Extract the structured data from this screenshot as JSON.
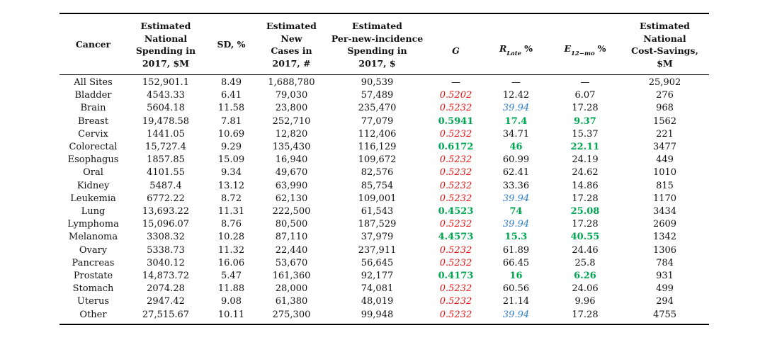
{
  "table": {
    "column_keys": [
      "cancer",
      "spending",
      "sd",
      "new-cases",
      "per-incidence-spending",
      "g",
      "r-late",
      "e-12mo",
      "cost-savings"
    ],
    "columns": [
      {
        "label": "Cancer"
      },
      {
        "label": "Estimated\nNational\nSpending in\n2017, $M"
      },
      {
        "label": "SD, %"
      },
      {
        "label": "Estimated\nNew\nCases in\n2017, #"
      },
      {
        "label": "Estimated\nPer-new-incidence\nSpending in\n2017, $"
      },
      {
        "label": "G"
      },
      {
        "base": "R",
        "sub": "Late",
        "suffix": "%"
      },
      {
        "base": "E",
        "sub": "12−mo",
        "suffix": "%"
      },
      {
        "label": "Estimated\nNational\nCost-Savings,\n$M"
      }
    ],
    "rows": [
      {
        "cells": [
          "All Sites",
          "152,901.1",
          "8.49",
          "1,688,780",
          "90,539",
          "—",
          "—",
          "—",
          "25,902"
        ],
        "styles": [
          "",
          "",
          "",
          "",
          "",
          "",
          "",
          "",
          ""
        ]
      },
      {
        "cells": [
          "Bladder",
          "4543.33",
          "6.41",
          "79,030",
          "57,489",
          "0.5202",
          "12.42",
          "6.07",
          "276"
        ],
        "styles": [
          "",
          "",
          "",
          "",
          "",
          "red",
          "",
          "",
          ""
        ]
      },
      {
        "cells": [
          "Brain",
          "5604.18",
          "11.58",
          "23,800",
          "235,470",
          "0.5232",
          "39.94",
          "17.28",
          "968"
        ],
        "styles": [
          "",
          "",
          "",
          "",
          "",
          "red",
          "blue",
          "",
          ""
        ]
      },
      {
        "cells": [
          "Breast",
          "19,478.58",
          "7.81",
          "252,710",
          "77,079",
          "0.5941",
          "17.4",
          "9.37",
          "1562"
        ],
        "styles": [
          "",
          "",
          "",
          "",
          "",
          "green",
          "green",
          "green",
          ""
        ]
      },
      {
        "cells": [
          "Cervix",
          "1441.05",
          "10.69",
          "12,820",
          "112,406",
          "0.5232",
          "34.71",
          "15.37",
          "221"
        ],
        "styles": [
          "",
          "",
          "",
          "",
          "",
          "red",
          "",
          "",
          ""
        ]
      },
      {
        "cells": [
          "Colorectal",
          "15,727.4",
          "9.29",
          "135,430",
          "116,129",
          "0.6172",
          "46",
          "22.11",
          "3477"
        ],
        "styles": [
          "",
          "",
          "",
          "",
          "",
          "green",
          "green",
          "green",
          ""
        ]
      },
      {
        "cells": [
          "Esophagus",
          "1857.85",
          "15.09",
          "16,940",
          "109,672",
          "0.5232",
          "60.99",
          "24.19",
          "449"
        ],
        "styles": [
          "",
          "",
          "",
          "",
          "",
          "red",
          "",
          "",
          ""
        ]
      },
      {
        "cells": [
          "Oral",
          "4101.55",
          "9.34",
          "49,670",
          "82,576",
          "0.5232",
          "62.41",
          "24.62",
          "1010"
        ],
        "styles": [
          "",
          "",
          "",
          "",
          "",
          "red",
          "",
          "",
          ""
        ]
      },
      {
        "cells": [
          "Kidney",
          "5487.4",
          "13.12",
          "63,990",
          "85,754",
          "0.5232",
          "33.36",
          "14.86",
          "815"
        ],
        "styles": [
          "",
          "",
          "",
          "",
          "",
          "red",
          "",
          "",
          ""
        ]
      },
      {
        "cells": [
          "Leukemia",
          "6772.22",
          "8.72",
          "62,130",
          "109,001",
          "0.5232",
          "39.94",
          "17.28",
          "1170"
        ],
        "styles": [
          "",
          "",
          "",
          "",
          "",
          "red",
          "blue",
          "",
          ""
        ]
      },
      {
        "cells": [
          "Lung",
          "13,693.22",
          "11.31",
          "222,500",
          "61,543",
          "0.4523",
          "74",
          "25.08",
          "3434"
        ],
        "styles": [
          "",
          "",
          "",
          "",
          "",
          "green",
          "green",
          "green",
          ""
        ]
      },
      {
        "cells": [
          "Lymphoma",
          "15,096.07",
          "8.76",
          "80,500",
          "187,529",
          "0.5232",
          "39.94",
          "17.28",
          "2609"
        ],
        "styles": [
          "",
          "",
          "",
          "",
          "",
          "red",
          "blue",
          "",
          ""
        ]
      },
      {
        "cells": [
          "Melanoma",
          "3308.32",
          "10.28",
          "87,110",
          "37,979",
          "4.4573",
          "15.3",
          "40.55",
          "1342"
        ],
        "styles": [
          "",
          "",
          "",
          "",
          "",
          "green",
          "green",
          "green",
          ""
        ]
      },
      {
        "cells": [
          "Ovary",
          "5338.73",
          "11.32",
          "22,440",
          "237,911",
          "0.5232",
          "61.89",
          "24.46",
          "1306"
        ],
        "styles": [
          "",
          "",
          "",
          "",
          "",
          "red",
          "",
          "",
          ""
        ]
      },
      {
        "cells": [
          "Pancreas",
          "3040.12",
          "16.06",
          "53,670",
          "56,645",
          "0.5232",
          "66.45",
          "25.8",
          "784"
        ],
        "styles": [
          "",
          "",
          "",
          "",
          "",
          "red",
          "",
          "",
          ""
        ]
      },
      {
        "cells": [
          "Prostate",
          "14,873.72",
          "5.47",
          "161,360",
          "92,177",
          "0.4173",
          "16",
          "6.26",
          "931"
        ],
        "styles": [
          "",
          "",
          "",
          "",
          "",
          "green",
          "green",
          "green",
          ""
        ]
      },
      {
        "cells": [
          "Stomach",
          "2074.28",
          "11.88",
          "28,000",
          "74,081",
          "0.5232",
          "60.56",
          "24.06",
          "499"
        ],
        "styles": [
          "",
          "",
          "",
          "",
          "",
          "red",
          "",
          "",
          ""
        ]
      },
      {
        "cells": [
          "Uterus",
          "2947.42",
          "9.08",
          "61,380",
          "48,019",
          "0.5232",
          "21.14",
          "9.96",
          "294"
        ],
        "styles": [
          "",
          "",
          "",
          "",
          "",
          "red",
          "",
          "",
          ""
        ]
      },
      {
        "cells": [
          "Other",
          "27,515.67",
          "10.11",
          "275,300",
          "99,948",
          "0.5232",
          "39.94",
          "17.28",
          "4755"
        ],
        "styles": [
          "",
          "",
          "",
          "",
          "",
          "red",
          "blue",
          "",
          ""
        ]
      }
    ]
  },
  "colors": {
    "text": "#111111",
    "rule": "#000000",
    "red": "#e81313",
    "green": "#00a651",
    "blue": "#3380cc"
  }
}
